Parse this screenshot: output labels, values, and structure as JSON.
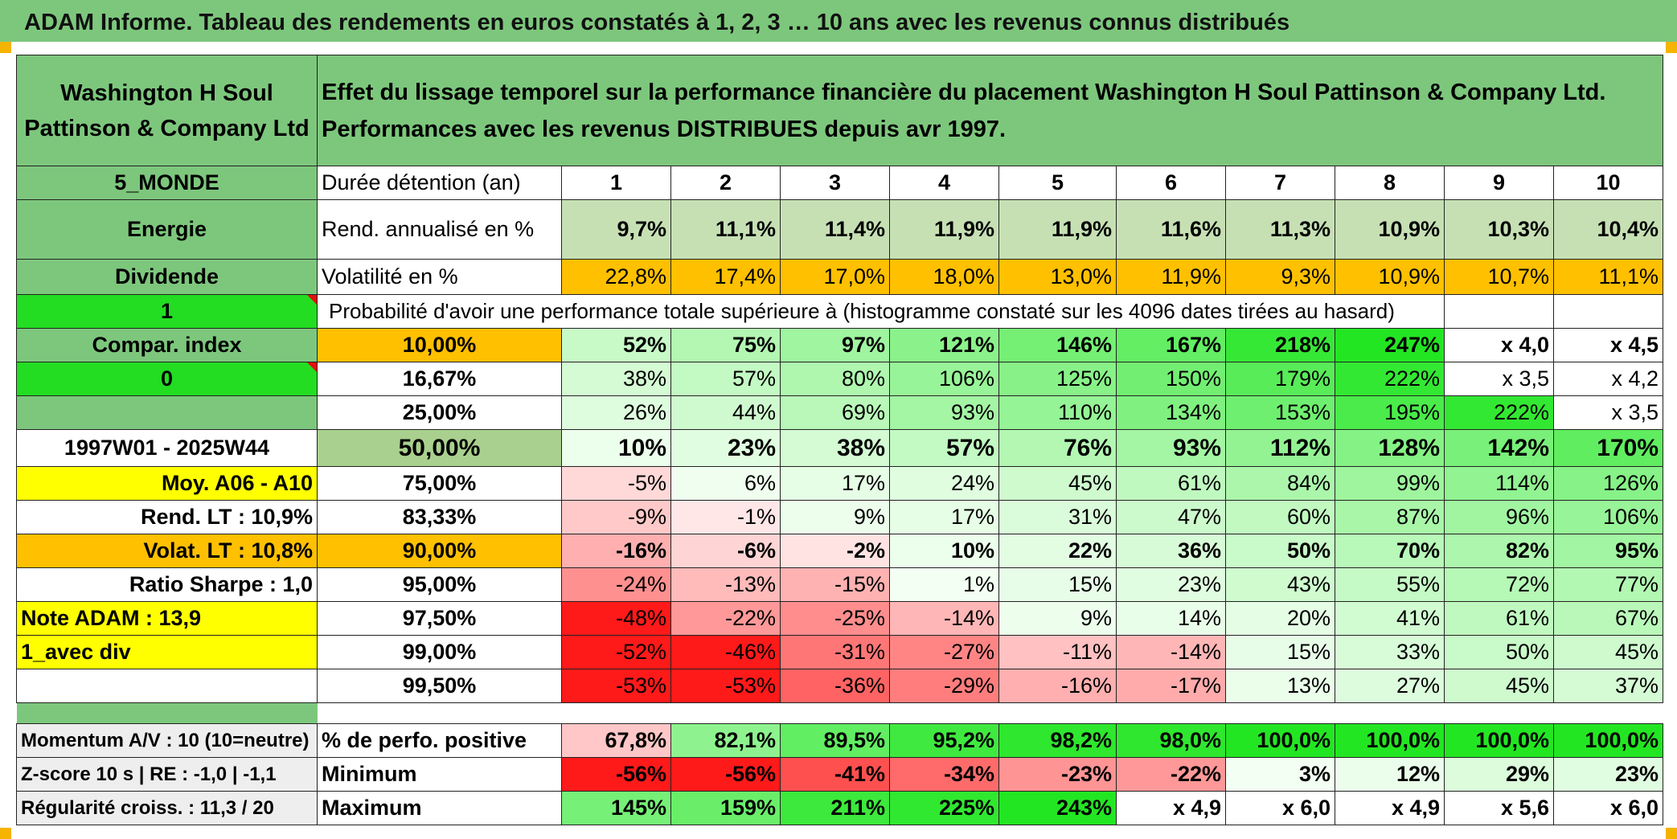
{
  "page_title": "ADAM Informe. Tableau des rendements en euros constatés à 1, 2, 3 … 10 ans avec les revenus connus distribués",
  "company": "Washington H Soul Pattinson & Company Ltd",
  "headline_line1": "Effet du lissage temporel sur la performance financière du placement Washington H Soul Pattinson & Company Ltd.",
  "headline_line2": "Performances avec les revenus DISTRIBUES depuis avr 1997.",
  "colors": {
    "title_green": "#7dc77d",
    "bright_green": "#22dd22",
    "orange": "#ffc000",
    "yellow": "#ffff00",
    "red_text": "#d91414"
  },
  "left_labels": {
    "region": "5_MONDE",
    "sector": "Energie",
    "type": "Dividende",
    "value_1": "1",
    "compar": "Compar. index",
    "value_0": "0",
    "period": "1997W01 - 2025W44",
    "moy": "Moy. A06 - A10",
    "rend_lt": "Rend. LT :   10,9%",
    "volat_lt": "Volat. LT :   10,8%",
    "sharpe": "Ratio Sharpe :    1,0",
    "note": "Note ADAM : 13,9",
    "avec_div": "1_avec div"
  },
  "duration_label": "Durée détention (an)",
  "years": [
    "1",
    "2",
    "3",
    "4",
    "5",
    "6",
    "7",
    "8",
    "9",
    "10"
  ],
  "rend_label": "Rend. annualisé en %",
  "rend_values": [
    "9,7%",
    "11,1%",
    "11,4%",
    "11,9%",
    "11,9%",
    "11,6%",
    "11,3%",
    "10,9%",
    "10,3%",
    "10,4%"
  ],
  "vol_label": "Volatilité en %",
  "vol_values": [
    "22,8%",
    "17,4%",
    "17,0%",
    "18,0%",
    "13,0%",
    "11,9%",
    "9,3%",
    "10,9%",
    "10,7%",
    "11,1%"
  ],
  "prob_label": "Probabilité d'avoir une performance totale supérieure à (histogramme constaté sur les 4096 dates tirées au hasard)",
  "prob_rows": [
    {
      "pct": "10,00%",
      "values": [
        "52%",
        "75%",
        "97%",
        "121%",
        "146%",
        "167%",
        "218%",
        "247%",
        "x 4,0",
        "x 4,5"
      ]
    },
    {
      "pct": "16,67%",
      "values": [
        "38%",
        "57%",
        "80%",
        "106%",
        "125%",
        "150%",
        "179%",
        "222%",
        "x 3,5",
        "x 4,2"
      ]
    },
    {
      "pct": "25,00%",
      "values": [
        "26%",
        "44%",
        "69%",
        "93%",
        "110%",
        "134%",
        "153%",
        "195%",
        "222%",
        "x 3,5"
      ]
    },
    {
      "pct": "50,00%",
      "values": [
        "10%",
        "23%",
        "38%",
        "57%",
        "76%",
        "93%",
        "112%",
        "128%",
        "142%",
        "170%"
      ]
    },
    {
      "pct": "75,00%",
      "values": [
        "-5%",
        "6%",
        "17%",
        "24%",
        "45%",
        "61%",
        "84%",
        "99%",
        "114%",
        "126%"
      ]
    },
    {
      "pct": "83,33%",
      "values": [
        "-9%",
        "-1%",
        "9%",
        "17%",
        "31%",
        "47%",
        "60%",
        "87%",
        "96%",
        "106%"
      ]
    },
    {
      "pct": "90,00%",
      "values": [
        "-16%",
        "-6%",
        "-2%",
        "10%",
        "22%",
        "36%",
        "50%",
        "70%",
        "82%",
        "95%"
      ]
    },
    {
      "pct": "95,00%",
      "values": [
        "-24%",
        "-13%",
        "-15%",
        "1%",
        "15%",
        "23%",
        "43%",
        "55%",
        "72%",
        "77%"
      ]
    },
    {
      "pct": "97,50%",
      "values": [
        "-48%",
        "-22%",
        "-25%",
        "-14%",
        "9%",
        "14%",
        "20%",
        "41%",
        "61%",
        "67%"
      ]
    },
    {
      "pct": "99,00%",
      "values": [
        "-52%",
        "-46%",
        "-31%",
        "-27%",
        "-11%",
        "-14%",
        "15%",
        "33%",
        "50%",
        "45%"
      ]
    },
    {
      "pct": "99,50%",
      "values": [
        "-53%",
        "-53%",
        "-36%",
        "-29%",
        "-16%",
        "-17%",
        "13%",
        "27%",
        "45%",
        "37%"
      ]
    }
  ],
  "bottom_rows": [
    {
      "left": "Momentum A/V : 10 (10=neutre)",
      "label": "% de perfo. positive",
      "values": [
        "67,8%",
        "82,1%",
        "89,5%",
        "95,2%",
        "98,2%",
        "98,0%",
        "100,0%",
        "100,0%",
        "100,0%",
        "100,0%"
      ]
    },
    {
      "left": "Z-score 10 s | RE : -1,0 | -1,1",
      "label": "Minimum",
      "values": [
        "-56%",
        "-56%",
        "-41%",
        "-34%",
        "-23%",
        "-22%",
        "3%",
        "12%",
        "29%",
        "23%"
      ]
    },
    {
      "left": "Régularité croiss. : 11,3 / 20",
      "label": "Maximum",
      "values": [
        "145%",
        "159%",
        "211%",
        "225%",
        "243%",
        "x 4,9",
        "x 6,0",
        "x 4,9",
        "x 5,6",
        "x 6,0"
      ]
    }
  ]
}
